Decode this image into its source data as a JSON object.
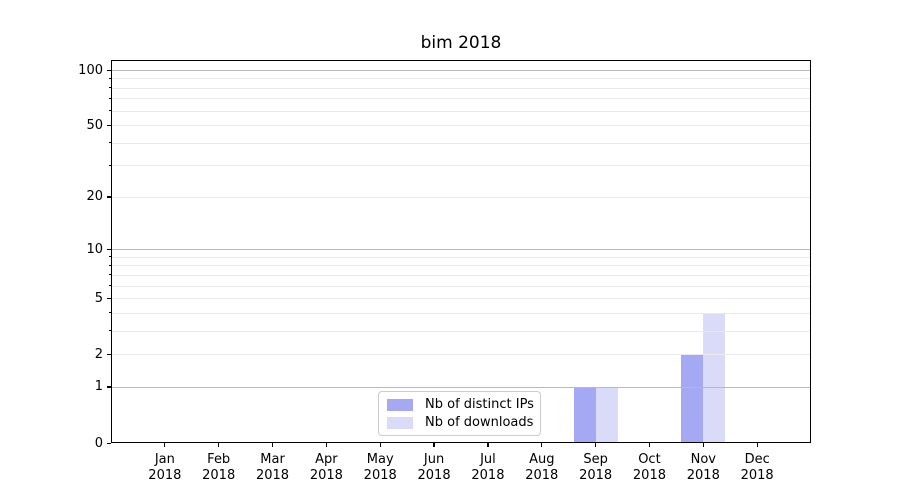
{
  "title": "bim 2018",
  "chart_data": {
    "type": "bar",
    "title": "bim 2018",
    "categories": [
      "Jan",
      "Feb",
      "Mar",
      "Apr",
      "May",
      "Jun",
      "Jul",
      "Aug",
      "Sep",
      "Oct",
      "Nov",
      "Dec"
    ],
    "x_tick_year": "2018",
    "series": [
      {
        "name": "Nb of distinct IPs",
        "color": "#a5a8f3",
        "values": [
          0,
          0,
          0,
          0,
          0,
          0,
          0,
          0,
          1,
          0,
          2,
          0
        ]
      },
      {
        "name": "Nb of downloads",
        "color": "#d9dbf9",
        "values": [
          0,
          0,
          0,
          0,
          0,
          0,
          0,
          0,
          1,
          0,
          4,
          0
        ]
      }
    ],
    "y_axis": {
      "scale": "log10(1+x)",
      "labeled_ticks": [
        0,
        1,
        2,
        5,
        10,
        20,
        50,
        100
      ],
      "decade_gridlines": [
        1,
        10,
        100
      ],
      "minor_gridlines": [
        2,
        3,
        4,
        5,
        6,
        7,
        8,
        9,
        20,
        30,
        40,
        50,
        60,
        70,
        80,
        90
      ],
      "ylim": [
        0,
        113
      ]
    },
    "xlabel": "",
    "ylabel": "",
    "grid": "horizontal",
    "legend_position": "lower center"
  },
  "colors": {
    "background": "#ffffff",
    "spine": "#000000",
    "decade_grid": "#b9b9b9",
    "minor_grid": "#e9e9e9",
    "text": "#000000",
    "legend_border": "#cccccc"
  }
}
